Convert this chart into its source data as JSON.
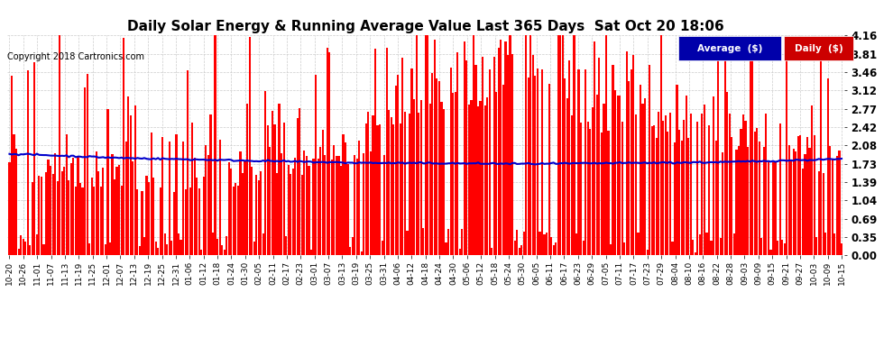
{
  "title": "Daily Solar Energy & Running Average Value Last 365 Days  Sat Oct 20 18:06",
  "copyright": "Copyright 2018 Cartronics.com",
  "ylabel_right_ticks": [
    0.0,
    0.35,
    0.69,
    1.04,
    1.39,
    1.73,
    2.08,
    2.42,
    2.77,
    3.12,
    3.46,
    3.81,
    4.16
  ],
  "ylim": [
    0,
    4.33
  ],
  "bar_color": "#ff0000",
  "avg_color": "#0000cc",
  "background_color": "#ffffff",
  "grid_color": "#cccccc",
  "title_fontsize": 11,
  "legend_avg_label": "Average  ($)",
  "legend_daily_label": "Daily  ($)",
  "legend_avg_bg": "#0000aa",
  "legend_daily_bg": "#cc0000",
  "x_tick_labels": [
    "10-20",
    "10-26",
    "11-01",
    "11-07",
    "11-13",
    "11-19",
    "11-25",
    "12-01",
    "12-07",
    "12-13",
    "12-19",
    "12-25",
    "12-31",
    "01-06",
    "01-12",
    "01-18",
    "01-24",
    "01-30",
    "02-05",
    "02-11",
    "02-17",
    "02-23",
    "03-01",
    "03-07",
    "03-13",
    "03-19",
    "03-25",
    "03-31",
    "04-06",
    "04-12",
    "04-18",
    "04-24",
    "04-30",
    "05-06",
    "05-12",
    "05-18",
    "05-24",
    "05-30",
    "06-05",
    "06-11",
    "06-17",
    "06-23",
    "06-29",
    "07-05",
    "07-11",
    "07-17",
    "07-23",
    "07-29",
    "08-04",
    "08-10",
    "08-16",
    "08-22",
    "08-28",
    "09-03",
    "09-09",
    "09-15",
    "09-21",
    "09-27",
    "10-03",
    "10-09",
    "10-15"
  ],
  "n_days": 365,
  "rand_seed": 42
}
